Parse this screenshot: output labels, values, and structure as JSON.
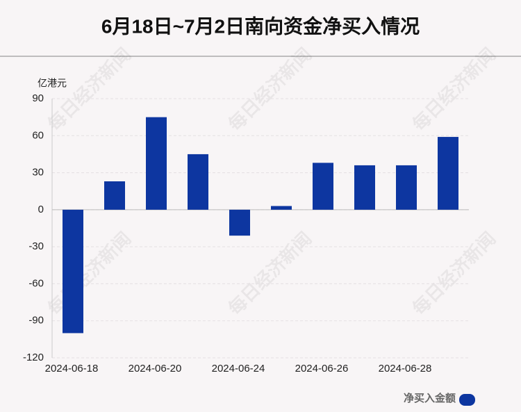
{
  "chart_data": {
    "type": "bar",
    "title": "6月18日~7月2日南向资金净买入情况",
    "y_axis_label": "亿港元",
    "watermark": "每日经济新闻",
    "categories": [
      "2024-06-18",
      null,
      "2024-06-20",
      null,
      "2024-06-24",
      null,
      "2024-06-26",
      null,
      "2024-06-28",
      null
    ],
    "series": [
      {
        "name": "净买入金额",
        "color": "#0d36a0",
        "values": [
          -100,
          23,
          75,
          45,
          -21,
          3,
          38,
          36,
          36,
          59
        ]
      }
    ],
    "ylim": [
      -120,
      90
    ],
    "yticks": [
      90,
      60,
      30,
      0,
      -30,
      -60,
      -90,
      -120
    ],
    "grid": true,
    "legend": "bottom-right"
  }
}
